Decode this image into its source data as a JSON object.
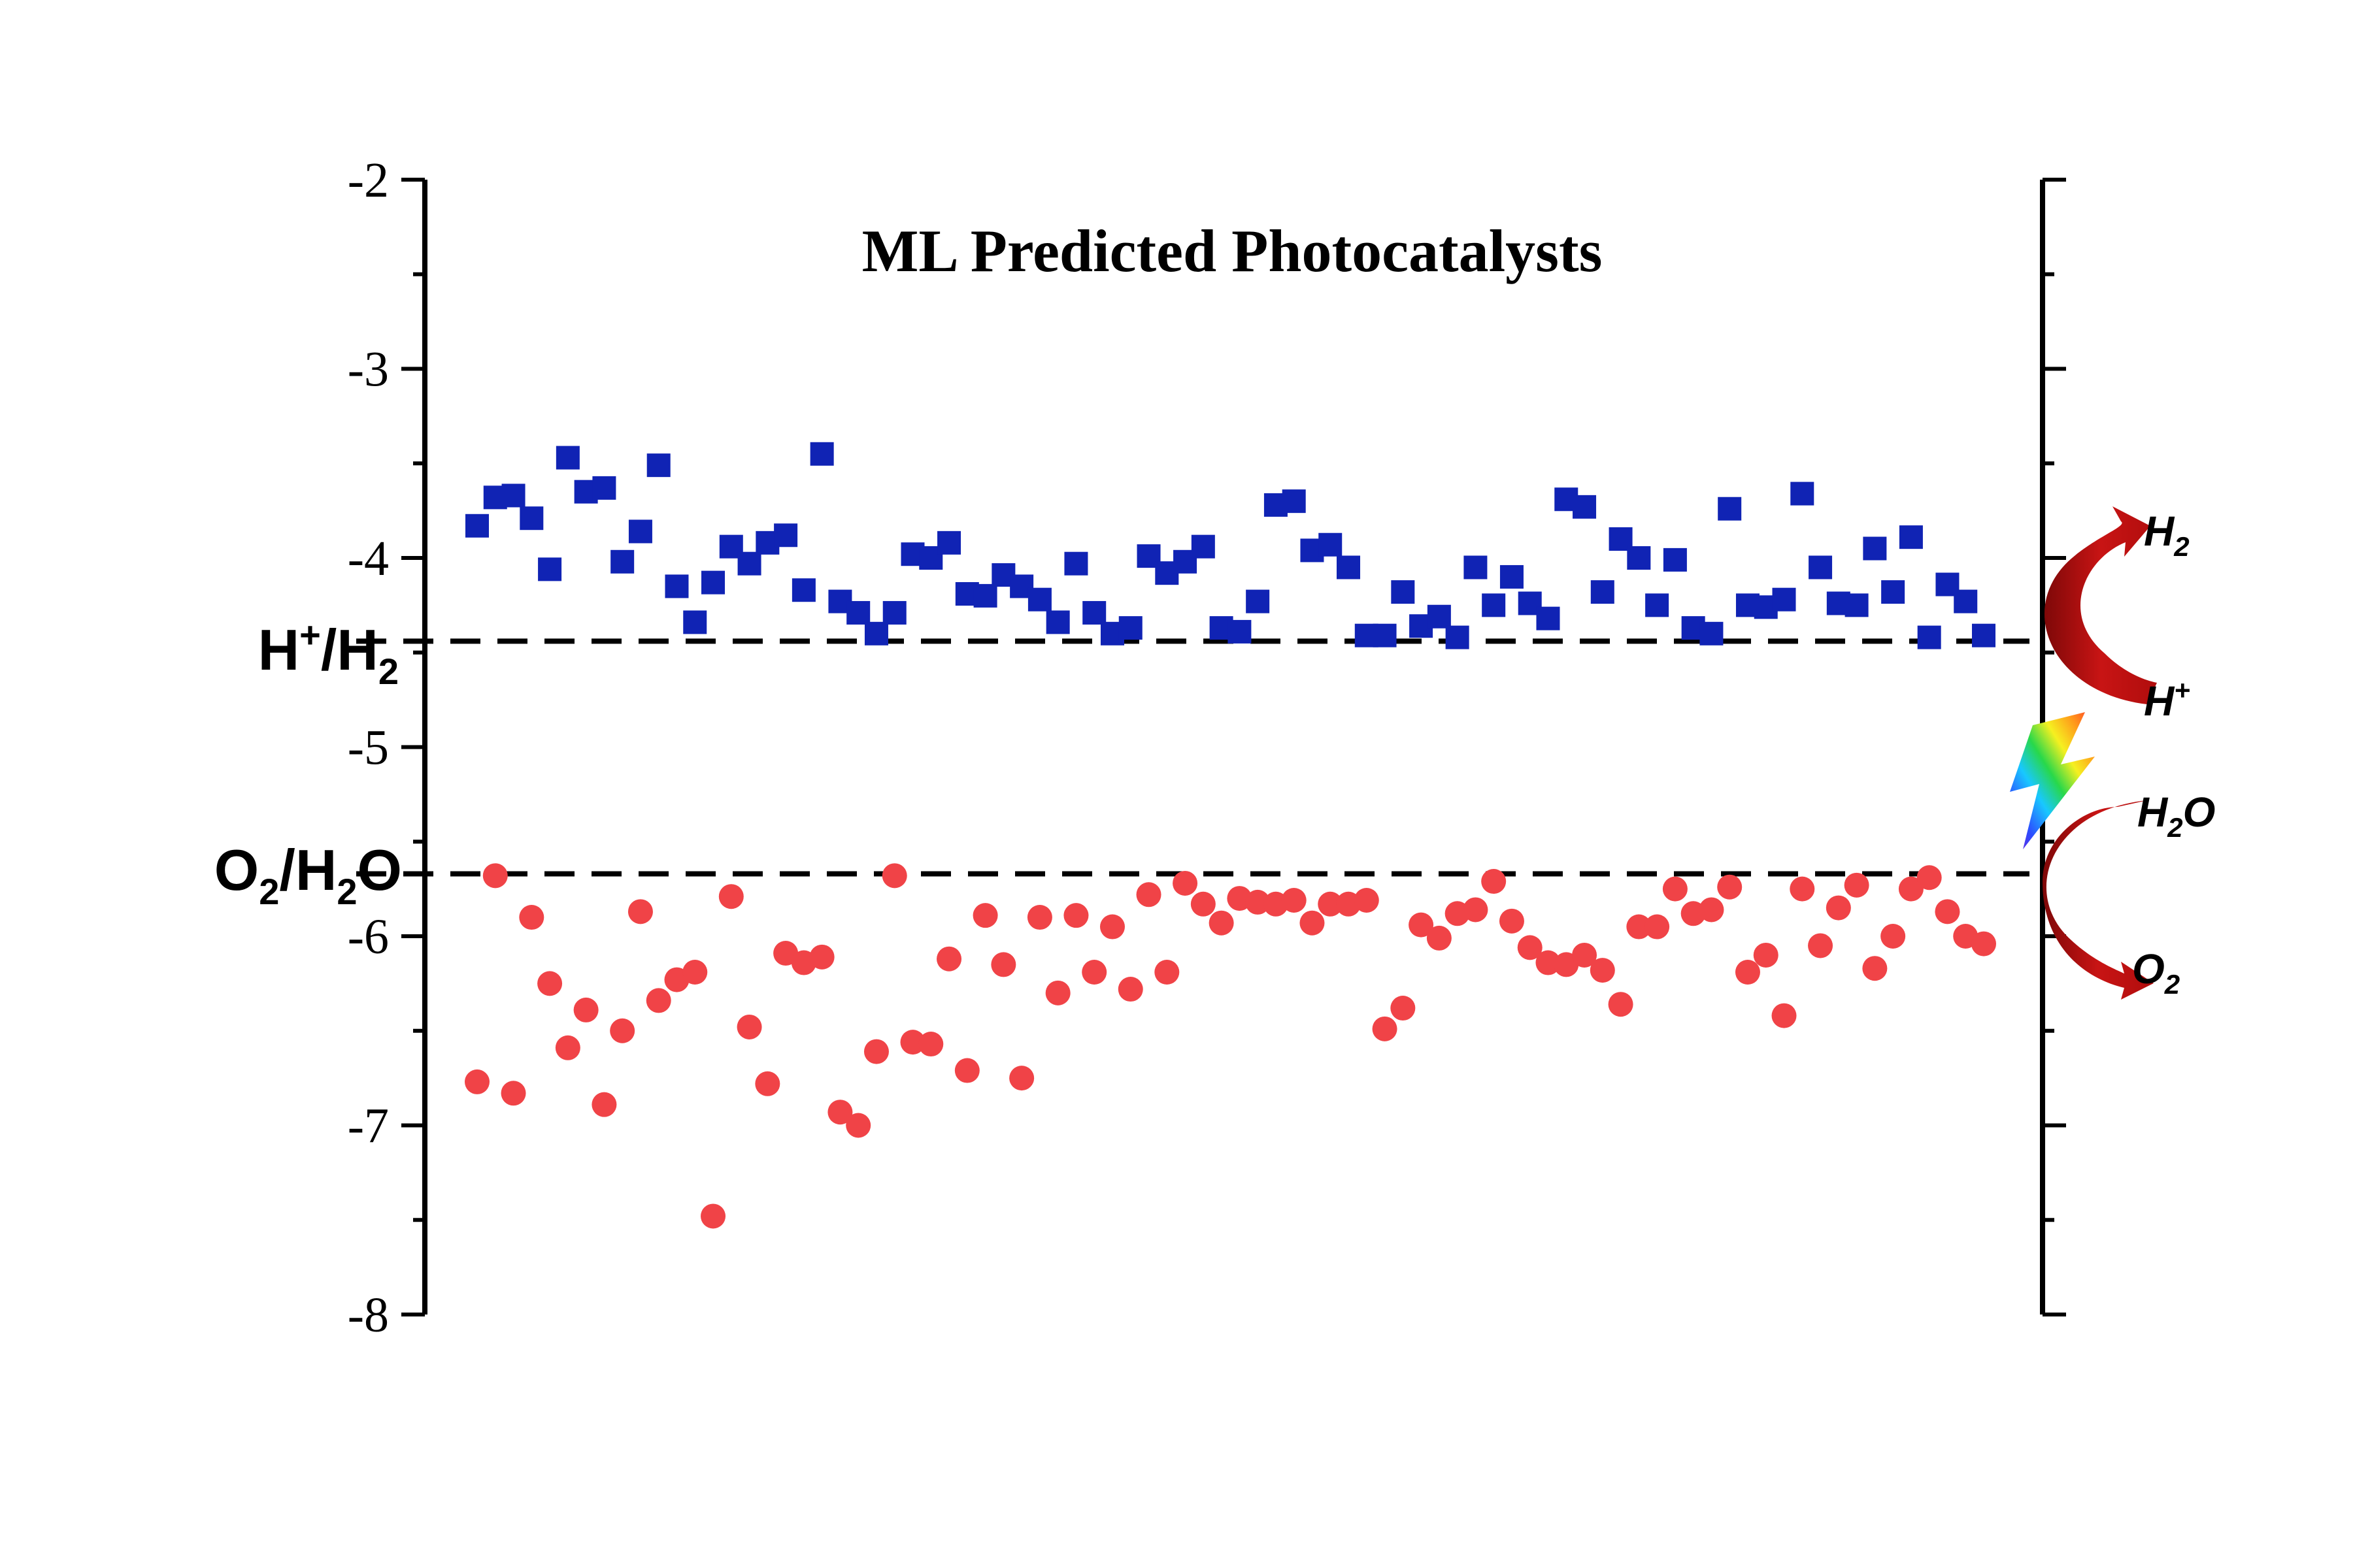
{
  "chart_data": {
    "type": "scatter",
    "title": "ML Predicted Photocatalysts",
    "xlabel": "",
    "ylabel": "",
    "ylim": [
      -8,
      -2
    ],
    "y_ticks": [
      "-2",
      "-3",
      "-4",
      "-5",
      "-6",
      "-7",
      "-8"
    ],
    "grid": false,
    "x": [
      1,
      2,
      3,
      4,
      5,
      6,
      7,
      8,
      9,
      10,
      11,
      12,
      13,
      14,
      15,
      16,
      17,
      18,
      19,
      20,
      21,
      22,
      23,
      24,
      25,
      26,
      27,
      28,
      29,
      30,
      31,
      32,
      33,
      34,
      35,
      36,
      37,
      38,
      39,
      40,
      41,
      42,
      43,
      44,
      45,
      46,
      47,
      48,
      49,
      50,
      51,
      52,
      53,
      54,
      55,
      56,
      57,
      58,
      59,
      60,
      61,
      62,
      63,
      64,
      65,
      66,
      67,
      68,
      69,
      70,
      71,
      72,
      73,
      74,
      75,
      76,
      77,
      78,
      79,
      80,
      81,
      82,
      83,
      84
    ],
    "series": [
      {
        "marker": "square",
        "color": "#1023B4",
        "values": [
          -3.83,
          -3.68,
          -3.67,
          -3.79,
          -4.06,
          -3.47,
          -3.65,
          -3.63,
          -4.02,
          -3.86,
          -3.51,
          -4.15,
          -4.34,
          -4.13,
          -3.94,
          -4.03,
          -3.92,
          -3.88,
          -4.17,
          -3.45,
          -4.23,
          -4.29,
          -4.4,
          -4.29,
          -3.98,
          -4.0,
          -3.92,
          -4.19,
          -4.2,
          -4.09,
          -4.15,
          -4.22,
          -4.34,
          -4.03,
          -4.29,
          -4.4,
          -4.37,
          -3.99,
          -4.08,
          -4.02,
          -3.94,
          -4.37,
          -4.39,
          -4.23,
          -3.72,
          -3.7,
          -3.96,
          -3.93,
          -4.05,
          -4.41,
          -4.41,
          -4.18,
          -4.36,
          -4.31,
          -4.42,
          -4.05,
          -4.25,
          -4.1,
          -4.24,
          -4.32,
          -3.69,
          -3.73,
          -4.18,
          -3.9,
          -4.0,
          -4.25,
          -4.01,
          -4.37,
          -4.4,
          -3.74,
          -4.25,
          -4.26,
          -4.22,
          -3.66,
          -4.05,
          -4.24,
          -4.25,
          -3.95,
          -4.18,
          -3.89,
          -4.42,
          -4.14,
          -4.23,
          -4.41
        ]
      },
      {
        "marker": "circle",
        "color": "#F04347",
        "values": [
          -6.77,
          -5.68,
          -6.83,
          -5.9,
          -6.25,
          -6.59,
          -6.39,
          -6.89,
          -6.5,
          -5.87,
          -6.34,
          -6.23,
          -6.19,
          -7.48,
          -5.79,
          -6.48,
          -6.78,
          -6.09,
          -6.14,
          -6.11,
          -6.93,
          -7.0,
          -6.61,
          -5.68,
          -6.56,
          -6.57,
          -6.12,
          -6.71,
          -5.89,
          -6.15,
          -6.75,
          -5.9,
          -6.3,
          -5.89,
          -6.19,
          -5.95,
          -6.28,
          -5.78,
          -6.19,
          -5.72,
          -5.83,
          -5.93,
          -5.8,
          -5.82,
          -5.83,
          -5.81,
          -5.93,
          -5.83,
          -5.83,
          -5.81,
          -6.49,
          -6.38,
          -5.94,
          -6.01,
          -5.88,
          -5.86,
          -5.71,
          -5.92,
          -6.06,
          -6.14,
          -6.15,
          -6.1,
          -6.18,
          -6.36,
          -5.95,
          -5.95,
          -5.75,
          -5.88,
          -5.86,
          -5.74,
          -6.19,
          -6.1,
          -6.42,
          -5.75,
          -6.05,
          -5.85,
          -5.73,
          -6.17,
          -6.0,
          -5.75,
          -5.69,
          -5.87,
          -6.0,
          -6.04
        ]
      }
    ],
    "reference_lines": [
      {
        "id": "hplus-h2",
        "y": -4.44,
        "style": "dashed"
      },
      {
        "id": "o2-h2o",
        "y": -5.67,
        "style": "dashed"
      }
    ]
  },
  "labels": {
    "h_level": {
      "main": "H",
      "sup": "+",
      "mid": "/H",
      "sub": "2"
    },
    "o_level": {
      "main": "O",
      "sub1": "2",
      "mid": "/H",
      "sub2": "2",
      "end": "O"
    }
  },
  "reactions": {
    "h2": {
      "main": "H",
      "sub": "2"
    },
    "hplus": {
      "main": "H",
      "sup": "+"
    },
    "h2o": {
      "main": "H",
      "sub": "2",
      "end": "O"
    },
    "o2": {
      "main": "O",
      "sub": "2"
    }
  },
  "colors": {
    "cb_series": "#1023B4",
    "vb_series": "#F04347",
    "arrow": "#B00D0D",
    "axis": "#000000"
  },
  "icons": {
    "lightning": "lightning-bolt-icon"
  }
}
